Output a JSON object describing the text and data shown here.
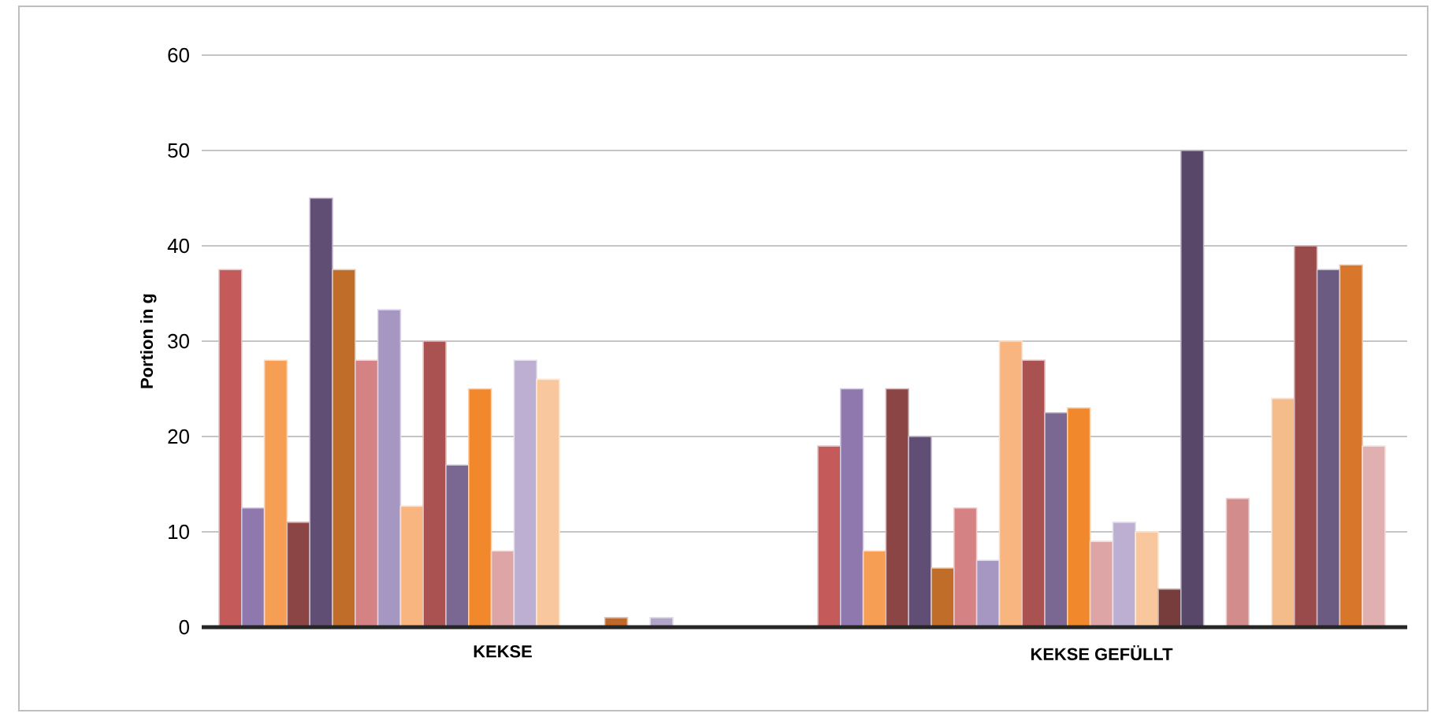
{
  "chart_data": {
    "type": "bar",
    "ylabel": "Portion in g",
    "categories": [
      "KEKSE",
      "KEKSE GEFÜLLT"
    ],
    "ylim": [
      0,
      60
    ],
    "yticks": [
      0,
      10,
      20,
      30,
      40,
      50,
      60
    ],
    "grid": "y",
    "series": [
      {
        "color": "#c55a5a",
        "values": [
          37.5,
          19
        ]
      },
      {
        "color": "#8e78ae",
        "values": [
          12.5,
          25
        ]
      },
      {
        "color": "#f79e55",
        "values": [
          28,
          8
        ]
      },
      {
        "color": "#8b4545",
        "values": [
          11,
          25
        ]
      },
      {
        "color": "#614e75",
        "values": [
          45,
          20
        ]
      },
      {
        "color": "#bf6d28",
        "values": [
          37.5,
          6.2
        ]
      },
      {
        "color": "#d48283",
        "values": [
          28,
          12.5
        ]
      },
      {
        "color": "#a597c1",
        "values": [
          33.3,
          7
        ]
      },
      {
        "color": "#f8b57f",
        "values": [
          12.7,
          30
        ]
      },
      {
        "color": "#aa5252",
        "values": [
          30,
          28
        ]
      },
      {
        "color": "#7a6893",
        "values": [
          17,
          22.5
        ]
      },
      {
        "color": "#f2882c",
        "values": [
          25,
          23
        ]
      },
      {
        "color": "#dda5a5",
        "values": [
          8,
          9
        ]
      },
      {
        "color": "#bdafd2",
        "values": [
          28,
          11
        ]
      },
      {
        "color": "#f8c79d",
        "values": [
          26,
          10
        ]
      },
      {
        "color": "#773d3d",
        "values": [
          null,
          4
        ]
      },
      {
        "color": "#594769",
        "values": [
          null,
          50
        ]
      },
      {
        "color": "#c0672a",
        "values": [
          1,
          null
        ]
      },
      {
        "color": "#d38c8c",
        "values": [
          null,
          13.5
        ]
      },
      {
        "color": "#b2a5c9",
        "values": [
          1,
          null
        ]
      },
      {
        "color": "#f4bc8a",
        "values": [
          null,
          24
        ]
      },
      {
        "color": "#994b4b",
        "values": [
          null,
          40
        ]
      },
      {
        "color": "#6b5b83",
        "values": [
          null,
          37.5
        ]
      },
      {
        "color": "#d8772b",
        "values": [
          null,
          38
        ]
      },
      {
        "color": "#e0afaf",
        "values": [
          null,
          19
        ]
      }
    ]
  }
}
